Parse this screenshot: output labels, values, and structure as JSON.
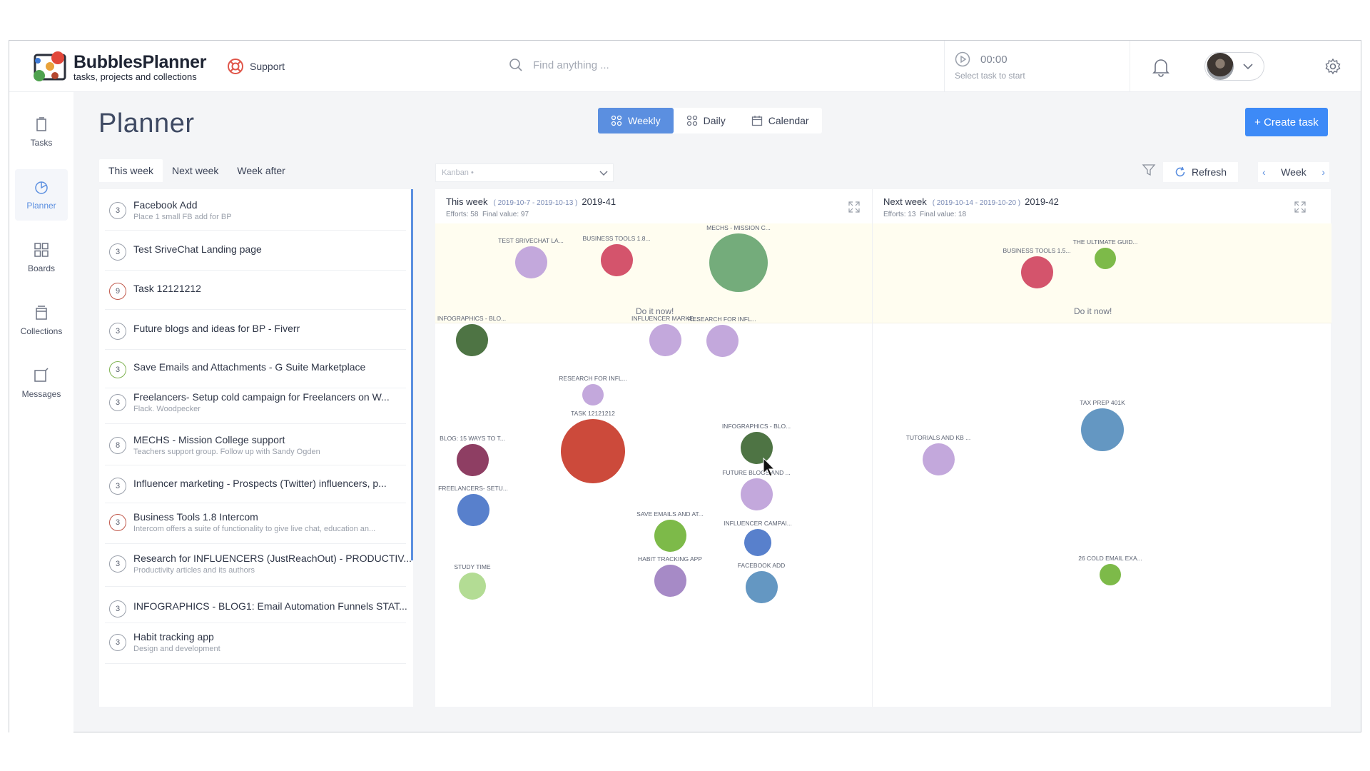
{
  "app": {
    "name": "BubblesPlanner",
    "tagline": "tasks, projects and collections"
  },
  "header": {
    "support_label": "Support",
    "search_placeholder": "Find anything ...",
    "timer_value": "00:00",
    "timer_hint": "Select task to start"
  },
  "nav": [
    {
      "label": "Tasks",
      "icon": "tasks-icon"
    },
    {
      "label": "Planner",
      "icon": "planner-icon",
      "active": true
    },
    {
      "label": "Boards",
      "icon": "boards-icon"
    },
    {
      "label": "Collections",
      "icon": "collections-icon"
    },
    {
      "label": "Messages",
      "icon": "messages-icon"
    }
  ],
  "page": {
    "title": "Planner",
    "view_tabs": [
      "Weekly",
      "Daily",
      "Calendar"
    ],
    "active_view": "Weekly",
    "create_label": "+ Create task",
    "week_tabs": [
      "This week",
      "Next week",
      "Week after"
    ],
    "kanban_label": "Kanban •",
    "refresh_label": "Refresh",
    "week_nav_label": "Week"
  },
  "tasks": [
    {
      "num": "3",
      "title": "Facebook Add",
      "sub": "Place 1 small FB add for BP",
      "color": "#9aa0ab"
    },
    {
      "num": "3",
      "title": "Test SriveChat Landing page",
      "sub": "",
      "color": "#9aa0ab"
    },
    {
      "num": "9",
      "title": "Task 12121212",
      "sub": "",
      "color": "#c0574a"
    },
    {
      "num": "3",
      "title": "Future blogs and ideas for BP - Fiverr",
      "sub": "",
      "color": "#9aa0ab"
    },
    {
      "num": "3",
      "title": "Save Emails and Attachments - G Suite Marketplace",
      "sub": "",
      "color": "#7fb352"
    },
    {
      "num": "3",
      "title": "Freelancers- Setup cold campaign for Freelancers on W...",
      "sub": "Flack. Woodpecker",
      "color": "#9aa0ab"
    },
    {
      "num": "8",
      "title": "MECHS - Mission College support",
      "sub": "Teachers support group. Follow up with Sandy Ogden",
      "color": "#9aa0ab"
    },
    {
      "num": "3",
      "title": "Influencer marketing - Prospects (Twitter) influencers, p...",
      "sub": "",
      "color": "#9aa0ab"
    },
    {
      "num": "3",
      "title": "Business Tools 1.8 Intercom",
      "sub": "Intercom offers a suite of functionality to give live chat, education an...",
      "color": "#c0574a"
    },
    {
      "num": "3",
      "title": "Research for INFLUENCERS (JustReachOut) - PRODUCTIV...",
      "sub": "Productivity articles and its authors",
      "color": "#9aa0ab"
    },
    {
      "num": "3",
      "title": "INFOGRAPHICS - BLOG1: Email Automation Funnels STAT...",
      "sub": "",
      "color": "#9aa0ab"
    },
    {
      "num": "3",
      "title": "Habit tracking app",
      "sub": "Design and development",
      "color": "#9aa0ab"
    }
  ],
  "columns": [
    {
      "title": "This week",
      "range": "( 2019-10-7 - 2019-10-13 )",
      "code": "2019-41",
      "efforts": "Efforts: 58",
      "final": "Final value: 97",
      "doitnow_label": "Do it now!",
      "bubbles": [
        {
          "label": "TEST SRIVECHAT LA...",
          "color": "#c3a8dc"
        },
        {
          "label": "BUSINESS TOOLS 1.8...",
          "color": "#d4546c"
        },
        {
          "label": "MECHS - MISSION C...",
          "color": "#74ac7b"
        },
        {
          "label": "INFOGRAPHICS - BLO...",
          "color": "#4e7444"
        },
        {
          "label": "INFLUENCER MARKE...",
          "color": "#c3a8dc"
        },
        {
          "label": "RESEARCH FOR INFL...",
          "color": "#c3a8dc"
        },
        {
          "label": "RESEARCH FOR INFL...",
          "color": "#c3a8dc"
        },
        {
          "label": "TASK 12121212",
          "color": "#cc4a3b"
        },
        {
          "label": "BLOG: 15 WAYS TO T...",
          "color": "#8e3e63"
        },
        {
          "label": "INFOGRAPHICS - BLO...",
          "color": "#4e7444"
        },
        {
          "label": "FUTURE BLOGS AND ...",
          "color": "#c3a8dc"
        },
        {
          "label": "FREELANCERS- SETU...",
          "color": "#5880cc"
        },
        {
          "label": "SAVE EMAILS AND AT...",
          "color": "#7dba49"
        },
        {
          "label": "INFLUENCER CAMPAI...",
          "color": "#5880cc"
        },
        {
          "label": "HABIT TRACKING APP",
          "color": "#a68ac6"
        },
        {
          "label": "FACEBOOK ADD",
          "color": "#6497c2"
        },
        {
          "label": "STUDY TIME",
          "color": "#b3dc94"
        }
      ]
    },
    {
      "title": "Next week",
      "range": "( 2019-10-14 - 2019-10-20 )",
      "code": "2019-42",
      "efforts": "Efforts: 13",
      "final": "Final value: 18",
      "doitnow_label": "Do it now!",
      "bubbles": [
        {
          "label": "BUSINESS TOOLS 1.5...",
          "color": "#d4546c"
        },
        {
          "label": "THE ULTIMATE GUID...",
          "color": "#7dba49"
        },
        {
          "label": "TAX PREP 401K",
          "color": "#6497c2"
        },
        {
          "label": "TUTORIALS AND KB ...",
          "color": "#c3a8dc"
        },
        {
          "label": "26 COLD EMAIL EXA...",
          "color": "#7dba49"
        }
      ]
    }
  ]
}
